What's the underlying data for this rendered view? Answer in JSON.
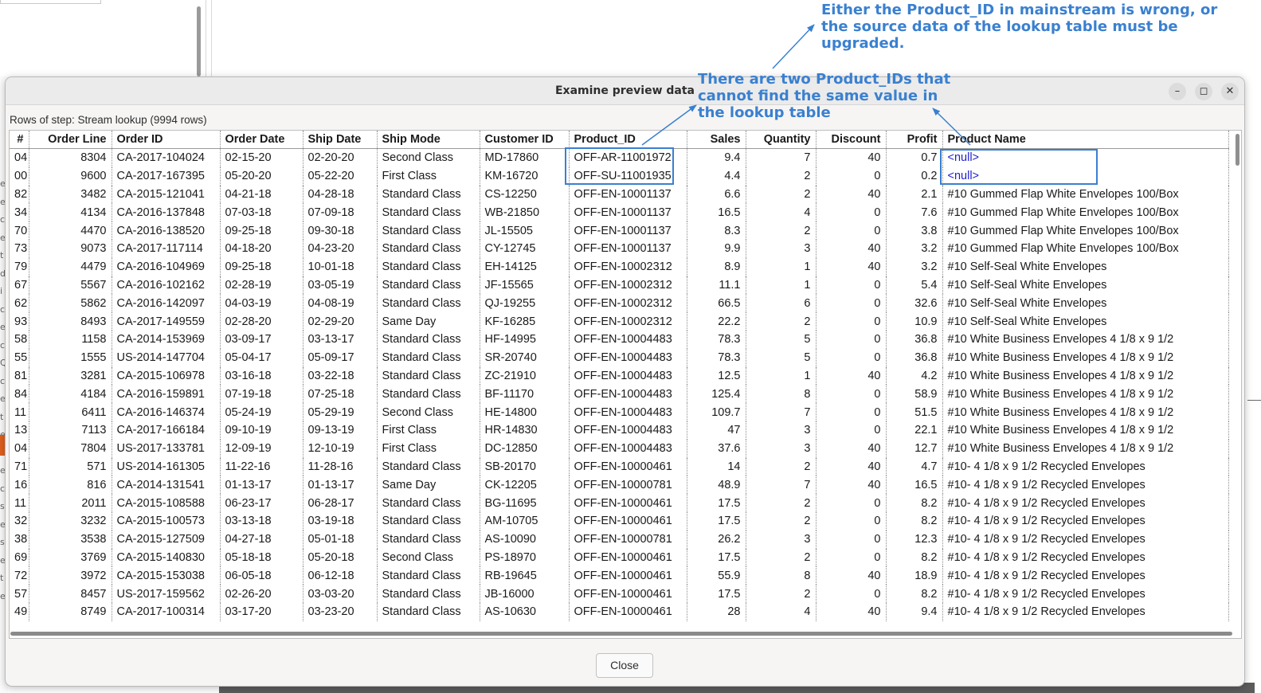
{
  "dialog": {
    "title": "Examine preview data",
    "rows_label": "Rows of step: Stream lookup (9994 rows)",
    "close_label": "Close",
    "window_buttons": {
      "minimize": "–",
      "maximize": "◻",
      "close": "✕"
    }
  },
  "background": {
    "left_letters": [
      "e",
      "e",
      "c",
      "e",
      "t",
      "d",
      "i",
      "c",
      "e",
      "c",
      "Q",
      "c",
      "e",
      "t",
      "e",
      "s",
      "e",
      "c",
      "s",
      "e",
      "s",
      "e",
      "t",
      "e"
    ]
  },
  "table": {
    "columns": [
      "#",
      "Order Line",
      "Order ID",
      "Order Date",
      "Ship Date",
      "Ship Mode",
      "Customer ID",
      "Product_ID",
      "Sales",
      "Quantity",
      "Discount",
      "Profit",
      "Product Name"
    ],
    "rows": [
      [
        "04",
        "8304",
        "CA-2017-104024",
        "02-15-20",
        "02-20-20",
        "Second Class",
        "MD-17860",
        "OFF-AR-11001972",
        "9.4",
        "7",
        "40",
        "0.7",
        "<null>"
      ],
      [
        "00",
        "9600",
        "CA-2017-167395",
        "05-20-20",
        "05-22-20",
        "First Class",
        "KM-16720",
        "OFF-SU-11001935",
        "4.4",
        "2",
        "0",
        "0.2",
        "<null>"
      ],
      [
        "82",
        "3482",
        "CA-2015-121041",
        "04-21-18",
        "04-28-18",
        "Standard Class",
        "CS-12250",
        "OFF-EN-10001137",
        "6.6",
        "2",
        "40",
        "2.1",
        "#10 Gummed Flap White Envelopes  100/Box"
      ],
      [
        "34",
        "4134",
        "CA-2016-137848",
        "07-03-18",
        "07-09-18",
        "Standard Class",
        "WB-21850",
        "OFF-EN-10001137",
        "16.5",
        "4",
        "0",
        "7.6",
        "#10 Gummed Flap White Envelopes  100/Box"
      ],
      [
        "70",
        "4470",
        "CA-2016-138520",
        "09-25-18",
        "09-30-18",
        "Standard Class",
        "JL-15505",
        "OFF-EN-10001137",
        "8.3",
        "2",
        "0",
        "3.8",
        "#10 Gummed Flap White Envelopes  100/Box"
      ],
      [
        "73",
        "9073",
        "CA-2017-117114",
        "04-18-20",
        "04-23-20",
        "Standard Class",
        "CY-12745",
        "OFF-EN-10001137",
        "9.9",
        "3",
        "40",
        "3.2",
        "#10 Gummed Flap White Envelopes  100/Box"
      ],
      [
        "79",
        "4479",
        "CA-2016-104969",
        "09-25-18",
        "10-01-18",
        "Standard Class",
        "EH-14125",
        "OFF-EN-10002312",
        "8.9",
        "1",
        "40",
        "3.2",
        "#10 Self-Seal White Envelopes"
      ],
      [
        "67",
        "5567",
        "CA-2016-102162",
        "02-28-19",
        "03-05-19",
        "Standard Class",
        "JF-15565",
        "OFF-EN-10002312",
        "11.1",
        "1",
        "0",
        "5.4",
        "#10 Self-Seal White Envelopes"
      ],
      [
        "62",
        "5862",
        "CA-2016-142097",
        "04-03-19",
        "04-08-19",
        "Standard Class",
        "QJ-19255",
        "OFF-EN-10002312",
        "66.5",
        "6",
        "0",
        "32.6",
        "#10 Self-Seal White Envelopes"
      ],
      [
        "93",
        "8493",
        "CA-2017-149559",
        "02-28-20",
        "02-29-20",
        "Same Day",
        "KF-16285",
        "OFF-EN-10002312",
        "22.2",
        "2",
        "0",
        "10.9",
        "#10 Self-Seal White Envelopes"
      ],
      [
        "58",
        "1158",
        "CA-2014-153969",
        "03-09-17",
        "03-13-17",
        "Standard Class",
        "HF-14995",
        "OFF-EN-10004483",
        "78.3",
        "5",
        "0",
        "36.8",
        "#10 White Business Envelopes 4 1/8 x 9 1/2"
      ],
      [
        "55",
        "1555",
        "US-2014-147704",
        "05-04-17",
        "05-09-17",
        "Standard Class",
        "SR-20740",
        "OFF-EN-10004483",
        "78.3",
        "5",
        "0",
        "36.8",
        "#10 White Business Envelopes 4 1/8 x 9 1/2"
      ],
      [
        "81",
        "3281",
        "CA-2015-106978",
        "03-16-18",
        "03-22-18",
        "Standard Class",
        "ZC-21910",
        "OFF-EN-10004483",
        "12.5",
        "1",
        "40",
        "4.2",
        "#10 White Business Envelopes 4 1/8 x 9 1/2"
      ],
      [
        "84",
        "4184",
        "CA-2016-159891",
        "07-19-18",
        "07-25-18",
        "Standard Class",
        "BF-11170",
        "OFF-EN-10004483",
        "125.4",
        "8",
        "0",
        "58.9",
        "#10 White Business Envelopes 4 1/8 x 9 1/2"
      ],
      [
        "11",
        "6411",
        "CA-2016-146374",
        "05-24-19",
        "05-29-19",
        "Second Class",
        "HE-14800",
        "OFF-EN-10004483",
        "109.7",
        "7",
        "0",
        "51.5",
        "#10 White Business Envelopes 4 1/8 x 9 1/2"
      ],
      [
        "13",
        "7113",
        "CA-2017-166184",
        "09-10-19",
        "09-13-19",
        "First Class",
        "HR-14830",
        "OFF-EN-10004483",
        "47",
        "3",
        "0",
        "22.1",
        "#10 White Business Envelopes 4 1/8 x 9 1/2"
      ],
      [
        "04",
        "7804",
        "US-2017-133781",
        "12-09-19",
        "12-10-19",
        "First Class",
        "DC-12850",
        "OFF-EN-10004483",
        "37.6",
        "3",
        "40",
        "12.7",
        "#10 White Business Envelopes 4 1/8 x 9 1/2"
      ],
      [
        "71",
        "571",
        "US-2014-161305",
        "11-22-16",
        "11-28-16",
        "Standard Class",
        "SB-20170",
        "OFF-EN-10000461",
        "14",
        "2",
        "40",
        "4.7",
        "#10- 4 1/8 x 9 1/2 Recycled Envelopes"
      ],
      [
        "16",
        "816",
        "CA-2014-131541",
        "01-13-17",
        "01-13-17",
        "Same Day",
        "CK-12205",
        "OFF-EN-10000781",
        "48.9",
        "7",
        "40",
        "16.5",
        "#10- 4 1/8 x 9 1/2 Recycled Envelopes"
      ],
      [
        "11",
        "2011",
        "CA-2015-108588",
        "06-23-17",
        "06-28-17",
        "Standard Class",
        "BG-11695",
        "OFF-EN-10000461",
        "17.5",
        "2",
        "0",
        "8.2",
        "#10- 4 1/8 x 9 1/2 Recycled Envelopes"
      ],
      [
        "32",
        "3232",
        "CA-2015-100573",
        "03-13-18",
        "03-19-18",
        "Standard Class",
        "AM-10705",
        "OFF-EN-10000461",
        "17.5",
        "2",
        "0",
        "8.2",
        "#10- 4 1/8 x 9 1/2 Recycled Envelopes"
      ],
      [
        "38",
        "3538",
        "CA-2015-127509",
        "04-27-18",
        "05-01-18",
        "Standard Class",
        "AS-10090",
        "OFF-EN-10000781",
        "26.2",
        "3",
        "0",
        "12.3",
        "#10- 4 1/8 x 9 1/2 Recycled Envelopes"
      ],
      [
        "69",
        "3769",
        "CA-2015-140830",
        "05-18-18",
        "05-20-18",
        "Second Class",
        "PS-18970",
        "OFF-EN-10000461",
        "17.5",
        "2",
        "0",
        "8.2",
        "#10- 4 1/8 x 9 1/2 Recycled Envelopes"
      ],
      [
        "72",
        "3972",
        "CA-2015-153038",
        "06-05-18",
        "06-12-18",
        "Standard Class",
        "RB-19645",
        "OFF-EN-10000461",
        "55.9",
        "8",
        "40",
        "18.9",
        "#10- 4 1/8 x 9 1/2 Recycled Envelopes"
      ],
      [
        "57",
        "8457",
        "US-2017-159562",
        "02-26-20",
        "03-03-20",
        "Standard Class",
        "JB-16000",
        "OFF-EN-10000461",
        "17.5",
        "2",
        "0",
        "8.2",
        "#10- 4 1/8 x 9 1/2 Recycled Envelopes"
      ],
      [
        "49",
        "8749",
        "CA-2017-100314",
        "03-17-20",
        "03-23-20",
        "Standard Class",
        "AS-10630",
        "OFF-EN-10000461",
        "28",
        "4",
        "40",
        "9.4",
        "#10- 4 1/8 x 9 1/2 Recycled Envelopes"
      ]
    ]
  },
  "annotations": {
    "top_note": [
      "Either the Product_ID in mainstream is wrong, or",
      "the source data of the lookup table must be",
      "upgraded."
    ],
    "middle_note": [
      "There are two Product_IDs that",
      "cannot find the same value in",
      "the lookup table"
    ],
    "color": "#3a80d0"
  }
}
